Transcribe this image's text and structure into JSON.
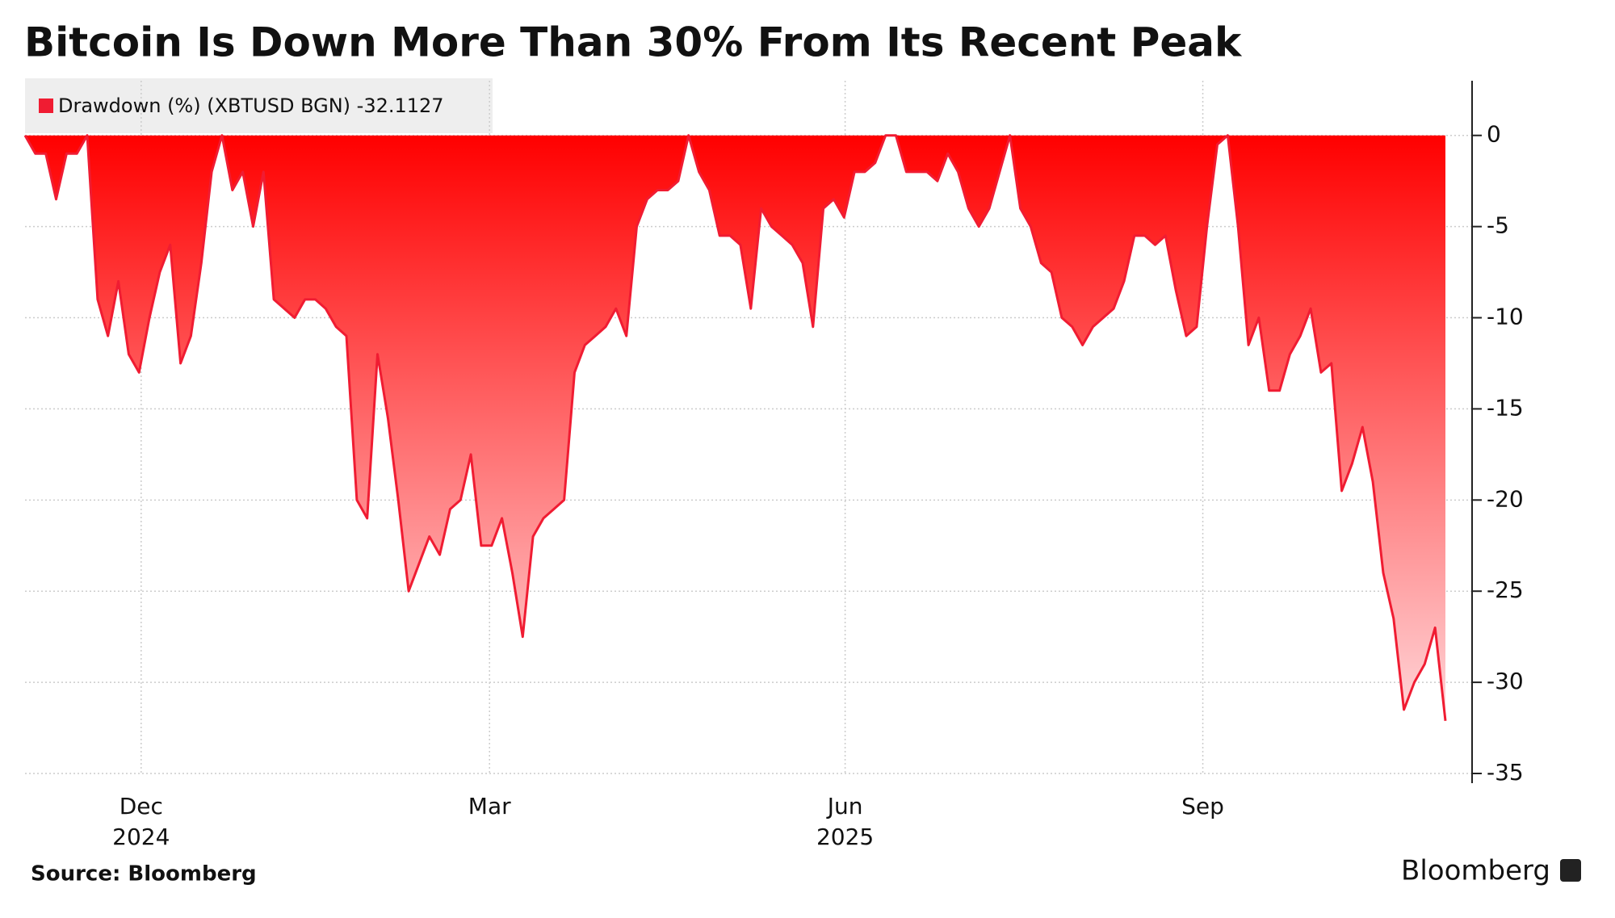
{
  "chart_data": {
    "type": "area",
    "title": "Bitcoin Is Down More Than 30% From Its Recent Peak",
    "source": "Source: Bloomberg",
    "brand": "Bloomberg",
    "series": [
      {
        "name": "Drawdown (%) (XBTUSD BGN)",
        "color": "#f01c32",
        "values": [
          0,
          -1,
          -1,
          -3.5,
          -1,
          -1,
          0,
          -9,
          -11,
          -8,
          -12,
          -13,
          -10,
          -7.5,
          -6,
          -12.5,
          -11,
          -7,
          -2,
          0,
          -3,
          -2,
          -5,
          -2,
          -9,
          -9.5,
          -10,
          -9,
          -9,
          -9.5,
          -10.5,
          -11,
          -20,
          -21,
          -12,
          -15.5,
          -20,
          -25,
          -23.5,
          -22,
          -23,
          -20.5,
          -20,
          -17.5,
          -22.5,
          -22.5,
          -21,
          -24,
          -27.5,
          -22,
          -21,
          -20.5,
          -20,
          -13,
          -11.5,
          -11,
          -10.5,
          -9.5,
          -11,
          -5,
          -3.5,
          -3,
          -3,
          -2.5,
          0,
          -2,
          -3,
          -5.5,
          -5.5,
          -6,
          -9.5,
          -4,
          -5,
          -5.5,
          -6,
          -7,
          -10.5,
          -4,
          -3.5,
          -4.5,
          -2,
          -2,
          -1.5,
          0,
          0,
          -2,
          -2,
          -2,
          -2.5,
          -1,
          -2,
          -4,
          -5,
          -4,
          -2,
          0,
          -4,
          -5,
          -7,
          -7.5,
          -10,
          -10.5,
          -11.5,
          -10.5,
          -10,
          -9.5,
          -8,
          -5.5,
          -5.5,
          -6,
          -5.5,
          -8.5,
          -11,
          -10.5,
          -5,
          -0.5,
          0,
          -5,
          -11.5,
          -10,
          -14,
          -14,
          -12,
          -11,
          -9.5,
          -13,
          -12.5,
          -19.5,
          -18,
          -16,
          -19,
          -24,
          -26.5,
          -31.5,
          -30,
          -29,
          -27,
          -32.1127
        ]
      }
    ],
    "xlim": [
      0,
      137
    ],
    "xticks": [
      {
        "value": 11.2,
        "label": [
          "Dec",
          "2024"
        ]
      },
      {
        "value": 44.8,
        "label": [
          "Mar"
        ]
      },
      {
        "value": 79.1,
        "label": [
          "Jun",
          "2025"
        ]
      },
      {
        "value": 113.6,
        "label": [
          "Sep"
        ]
      }
    ],
    "ylim": [
      -35,
      3
    ],
    "yticks": [
      0,
      -5,
      -10,
      -15,
      -20,
      -25,
      -30,
      -35
    ],
    "grid": true
  }
}
